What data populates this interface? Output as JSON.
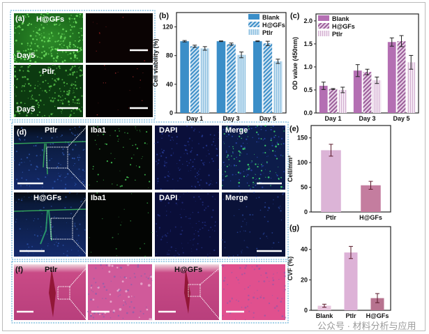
{
  "panels": {
    "a": {
      "label": "(a)",
      "sample_top": "H@GFs",
      "sample_bottom": "Ptlr",
      "day_top": "Day5",
      "day_bottom": "Day5"
    },
    "d": {
      "label": "(d)",
      "rows": [
        "Ptlr",
        "H@GFs"
      ],
      "columns": [
        "Iba1",
        "DAPI",
        "Merge"
      ]
    },
    "f": {
      "label": "(f)",
      "samples": [
        "Ptlr",
        "H@GFs"
      ]
    }
  },
  "watermark": "公众号 · 材料分析与应用",
  "colors": {
    "blue_blank": "#3b8ec8",
    "blue_hgfs": "#5a9fd0",
    "blue_ptlr": "#a8cfe8",
    "purple_blank": "#b46fb3",
    "purple_hgfs": "#9a5d99",
    "purple_ptlr": "#dcbfda",
    "e_ptlr": "#dcb4d7",
    "e_hgfs": "#c47d9f",
    "g_blank": "#e8c6de",
    "g_ptlr": "#ddb2d7",
    "g_hgfs": "#b7738f",
    "frame": "#4aa0d0"
  },
  "chart_data": [
    {
      "id": "b",
      "label": "(b)",
      "type": "bar",
      "categories": [
        "Day 1",
        "Day 3",
        "Day 5"
      ],
      "series": [
        {
          "name": "Blank",
          "values": [
            100,
            100,
            100
          ],
          "errors": [
            1,
            0.5,
            0.5
          ]
        },
        {
          "name": "H@GFs",
          "values": [
            93,
            96,
            97
          ],
          "errors": [
            1.5,
            1.5,
            3
          ]
        },
        {
          "name": "Ptlr",
          "values": [
            90,
            81,
            72
          ],
          "errors": [
            2.5,
            4,
            3
          ]
        }
      ],
      "ylabel": "Cell viability (%)",
      "ylim": [
        0,
        140
      ],
      "yticks": [
        0,
        40,
        80,
        120
      ],
      "legend": "top-right"
    },
    {
      "id": "c",
      "label": "(c)",
      "type": "bar",
      "categories": [
        "Day 1",
        "Day 3",
        "Day 5"
      ],
      "series": [
        {
          "name": "Blank",
          "values": [
            0.59,
            0.92,
            1.54
          ],
          "errors": [
            0.08,
            0.13,
            0.09
          ]
        },
        {
          "name": "H@GFs",
          "values": [
            0.52,
            0.89,
            1.56
          ],
          "errors": [
            0.01,
            0.06,
            0.12
          ]
        },
        {
          "name": "Ptlr",
          "values": [
            0.5,
            0.71,
            1.1
          ],
          "errors": [
            0.06,
            0.07,
            0.15
          ]
        }
      ],
      "ylabel": "OD value (450nm)",
      "ylim": [
        0,
        2.15
      ],
      "yticks": [
        "0.0",
        "0.5",
        "1.0",
        "1.5",
        "2.0"
      ],
      "legend": "top-left"
    },
    {
      "id": "e",
      "label": "(e)",
      "type": "bar",
      "categories": [
        "Ptlr",
        "H@GFs"
      ],
      "values": [
        125,
        54
      ],
      "errors": [
        12,
        8
      ],
      "ylabel": "Cell/mm²",
      "ylim": [
        0,
        175
      ],
      "yticks": [
        0,
        50,
        100,
        150
      ]
    },
    {
      "id": "g",
      "label": "(g)",
      "type": "bar",
      "categories": [
        "Blank",
        "Ptlr",
        "H@GFs"
      ],
      "values": [
        3,
        38,
        8
      ],
      "errors": [
        1,
        4,
        3
      ],
      "ylabel": "CVF (%)",
      "ylim": [
        0,
        55
      ],
      "yticks": [
        0,
        20,
        40
      ]
    }
  ]
}
